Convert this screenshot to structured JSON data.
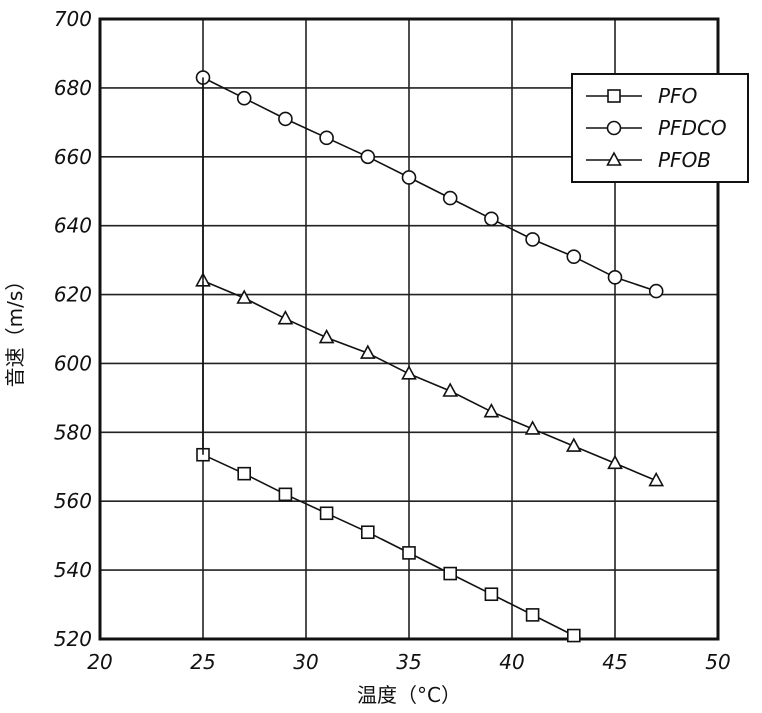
{
  "chart_data": {
    "type": "line",
    "xlabel": "温度（°C）",
    "ylabel": "音速（m/s）",
    "xlim": [
      20,
      50
    ],
    "ylim": [
      520,
      700
    ],
    "x_ticks": [
      20,
      25,
      30,
      35,
      40,
      45,
      50
    ],
    "y_ticks": [
      520,
      540,
      560,
      580,
      600,
      620,
      640,
      660,
      680,
      700
    ],
    "grid": true,
    "legend_position": "top-right",
    "series": [
      {
        "name": "PFO",
        "marker": "square",
        "x": [
          25,
          27,
          29,
          31,
          33,
          35,
          37,
          39,
          41,
          43
        ],
        "y": [
          573.5,
          568,
          562,
          556.5,
          551,
          545,
          539,
          533,
          527,
          521
        ]
      },
      {
        "name": "PFDCO",
        "marker": "circle",
        "x": [
          25,
          27,
          29,
          31,
          33,
          35,
          37,
          39,
          41,
          43,
          45,
          47
        ],
        "y": [
          683,
          677,
          671,
          665.5,
          660,
          654,
          648,
          642,
          636,
          631,
          625,
          621
        ]
      },
      {
        "name": "PFOB",
        "marker": "triangle",
        "x": [
          25,
          27,
          29,
          31,
          33,
          35,
          37,
          39,
          41,
          43,
          45,
          47
        ],
        "y": [
          624,
          619,
          613,
          607.5,
          603,
          597,
          592,
          586,
          581,
          576,
          571,
          566
        ]
      }
    ]
  }
}
